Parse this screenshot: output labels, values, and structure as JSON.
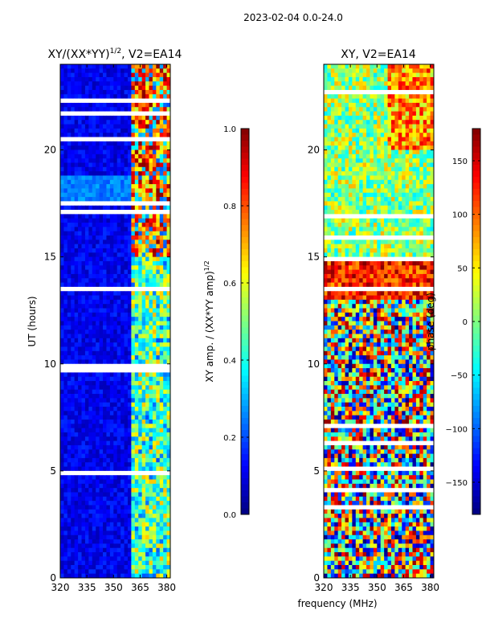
{
  "chart_data": [
    {
      "type": "heatmap",
      "title": "XY/(XX*YY)",
      "title_exp": "1/2",
      "title_tail": ", V2=EA14",
      "xlabel": "",
      "ylabel": "UT (hours)",
      "xlim": [
        320,
        382
      ],
      "ylim": [
        0,
        24
      ],
      "xticks": [
        320,
        335,
        350,
        365,
        380
      ],
      "yticks": [
        0,
        5,
        10,
        15,
        20
      ],
      "colorbar": {
        "label": "XY amp. / (XX*YY amp)",
        "label_exp": "1/2",
        "range": [
          0.0,
          1.0
        ],
        "ticks": [
          "0.0",
          "0.2",
          "0.4",
          "0.6",
          "0.8",
          "1.0"
        ],
        "colormap": "jet"
      },
      "description": "Mostly low amplitude (~0.05-0.2) across 320-360 MHz; high amplitude bands (~0.5-1.0) between 360-380 MHz, strongest after 15 UT; several white gaps (flagged data)."
    },
    {
      "type": "heatmap",
      "title": "XY, V2=EA14",
      "xlabel": "frequency (MHz)",
      "ylabel": "",
      "xlim": [
        320,
        382
      ],
      "ylim": [
        0,
        24
      ],
      "xticks": [
        320,
        335,
        350,
        365,
        380
      ],
      "yticks": [
        0,
        5,
        10,
        15,
        20
      ],
      "colorbar": {
        "label": "phase (deg)",
        "range": [
          -180,
          180
        ],
        "ticks": [
          "−150",
          "−100",
          "−50",
          "0",
          "50",
          "100",
          "150"
        ],
        "colormap": "jet"
      },
      "description": "Noisy phase spanning full range; mostly green/cyan after 15 UT, red/orange dominated 13-14 UT, mixed below."
    }
  ],
  "suptitle": "2023-02-04 0.0-24.0",
  "colors": {
    "jet": [
      "#00007f",
      "#0000ff",
      "#007fff",
      "#00ffff",
      "#7fff7f",
      "#ffff00",
      "#ff7f00",
      "#ff0000",
      "#7f0000"
    ]
  }
}
